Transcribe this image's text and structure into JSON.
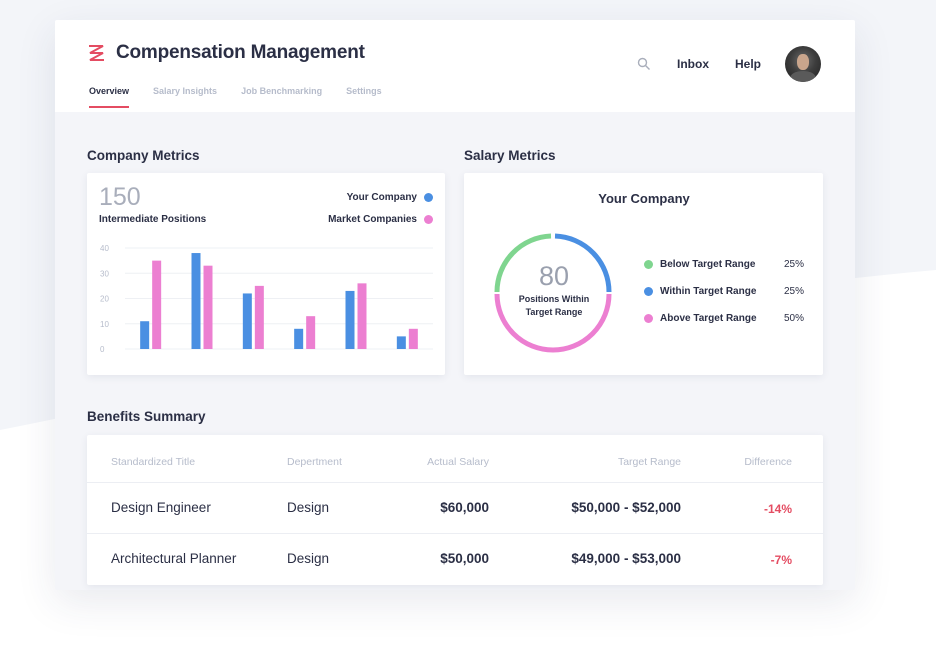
{
  "app": {
    "title": "Compensation Management",
    "tabs": [
      {
        "label": "Overview",
        "active": true
      },
      {
        "label": "Salary Insights",
        "active": false
      },
      {
        "label": "Job Benchmarking",
        "active": false
      },
      {
        "label": "Settings",
        "active": false
      }
    ],
    "nav": {
      "inbox": "Inbox",
      "help": "Help"
    },
    "icons": {
      "logo": "logo-icon",
      "search": "search-icon"
    }
  },
  "company_metrics": {
    "title": "Company Metrics",
    "count": "150",
    "count_label": "Intermediate Positions",
    "legend": [
      {
        "label": "Your Company",
        "color": "#4a8fe2"
      },
      {
        "label": "Market Companies",
        "color": "#ec7fd1"
      }
    ]
  },
  "salary_metrics": {
    "title": "Salary Metrics",
    "card_title": "Your Company",
    "center_value": "80",
    "center_label_1": "Positions Within",
    "center_label_2": "Target Range",
    "rows": [
      {
        "label": "Below Target Range",
        "pct": "25%",
        "color": "#7fd58f"
      },
      {
        "label": "Within Target Range",
        "pct": "25%",
        "color": "#4a8fe2"
      },
      {
        "label": "Above Target Range",
        "pct": "50%",
        "color": "#ec7fd1"
      }
    ]
  },
  "benefits": {
    "title": "Benefits Summary",
    "headers": [
      "Standardized Title",
      "Depertment",
      "Actual Salary",
      "Target Range",
      "Difference"
    ],
    "rows": [
      {
        "title": "Design Engineer",
        "department": "Design",
        "salary": "$60,000",
        "range": "$50,000 - $52,000",
        "diff": "-14%"
      },
      {
        "title": "Architectural Planner",
        "department": "Design",
        "salary": "$50,000",
        "range": "$49,000 - $53,000",
        "diff": "-7%"
      }
    ]
  },
  "chart_data": {
    "type": "bar",
    "categories": [
      "1",
      "2",
      "3",
      "4",
      "5",
      "6"
    ],
    "series": [
      {
        "name": "Your Company",
        "color": "#4a8fe2",
        "values": [
          11,
          38,
          22,
          8,
          23,
          5
        ]
      },
      {
        "name": "Market Companies",
        "color": "#ec7fd1",
        "values": [
          35,
          33,
          25,
          13,
          26,
          8
        ]
      }
    ],
    "yticks": [
      0,
      10,
      20,
      30,
      40
    ],
    "ylim": [
      0,
      40
    ],
    "grid": true,
    "legend": "top-right",
    "title": "",
    "xlabel": "",
    "ylabel": ""
  }
}
